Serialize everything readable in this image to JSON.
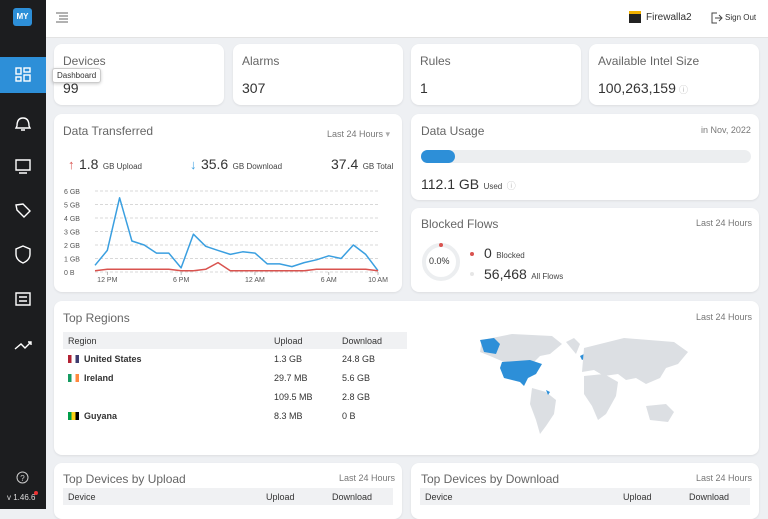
{
  "topbar": {
    "device": "Firewalla2",
    "sign_out": "Sign Out"
  },
  "sidebar": {
    "logo": "MY",
    "tooltip": "Dashboard",
    "version": "v 1.46.6"
  },
  "stats": [
    {
      "label": "Devices",
      "value": "99"
    },
    {
      "label": "Alarms",
      "value": "307"
    },
    {
      "label": "Rules",
      "value": "1"
    },
    {
      "label": "Available Intel Size",
      "value": "100,263,159"
    }
  ],
  "data_transferred": {
    "title": "Data Transferred",
    "period": "Last 24 Hours",
    "upload": "1.8",
    "upload_unit": "GB Upload",
    "download": "35.6",
    "download_unit": "GB Download",
    "total": "37.4",
    "total_unit": "GB Total",
    "chart": {
      "type": "line",
      "x": [
        0,
        1,
        2,
        3,
        4,
        5,
        6,
        7,
        8,
        9,
        10,
        11,
        12,
        13,
        14,
        15,
        16,
        17,
        18,
        19,
        20,
        21,
        22,
        23
      ],
      "xlim": [
        0,
        23
      ],
      "xticks": [
        {
          "value": 1,
          "label": "12 PM"
        },
        {
          "value": 7,
          "label": "6 PM"
        },
        {
          "value": 13,
          "label": "12 AM"
        },
        {
          "value": 19,
          "label": "6 AM"
        },
        {
          "value": 23,
          "label": "10 AM"
        }
      ],
      "ylim": [
        0,
        6
      ],
      "yticks": [
        {
          "value": 0,
          "label": "0 B"
        },
        {
          "value": 1,
          "label": "1 GB"
        },
        {
          "value": 2,
          "label": "2 GB"
        },
        {
          "value": 3,
          "label": "3 GB"
        },
        {
          "value": 4,
          "label": "4 GB"
        },
        {
          "value": 5,
          "label": "5 GB"
        },
        {
          "value": 6,
          "label": "6 GB"
        }
      ],
      "grid": true,
      "series": [
        {
          "color": "#3a9fe0",
          "values": [
            0.5,
            1.6,
            5.5,
            2.3,
            2.0,
            1.4,
            1.4,
            0.3,
            2.8,
            1.9,
            1.6,
            1.3,
            1.5,
            1.4,
            0.6,
            0.6,
            0.4,
            0.7,
            0.9,
            1.2,
            1.0,
            2.0,
            1.3,
            0.1
          ]
        },
        {
          "color": "#d9534f",
          "values": [
            0.1,
            0.2,
            0.2,
            0.2,
            0.2,
            0.2,
            0.2,
            0.1,
            0.1,
            0.2,
            0.7,
            0.1,
            0.1,
            0.1,
            0.1,
            0.1,
            0.1,
            0.1,
            0.2,
            0.2,
            0.2,
            0.2,
            0.2,
            0.1
          ]
        }
      ]
    }
  },
  "data_usage": {
    "title": "Data Usage",
    "period": "in Nov, 2022",
    "used": "112.1 GB",
    "used_label": "Used"
  },
  "blocked_flows": {
    "title": "Blocked Flows",
    "period": "Last 24 Hours",
    "percent": "0.0%",
    "blocked": "0",
    "blocked_label": "Blocked",
    "all": "56,468",
    "all_label": "All Flows"
  },
  "top_regions": {
    "title": "Top Regions",
    "period": "Last 24 Hours",
    "header": [
      "Region",
      "Upload",
      "Download"
    ],
    "rows": [
      [
        "United States",
        "1.3 GB",
        "24.8 GB"
      ],
      [
        "Ireland",
        "29.7 MB",
        "5.6 GB"
      ],
      [
        null,
        "109.5 MB",
        "2.8 GB"
      ],
      [
        "Guyana",
        "8.3 MB",
        "0 B"
      ]
    ]
  },
  "top_upload": {
    "title": "Top Devices by Upload",
    "period": "Last 24 Hours",
    "header": [
      "Device",
      "Upload",
      "Download"
    ]
  },
  "top_download": {
    "title": "Top Devices by Download",
    "period": "Last 24 Hours",
    "header": [
      "Device",
      "Upload",
      "Download"
    ]
  }
}
